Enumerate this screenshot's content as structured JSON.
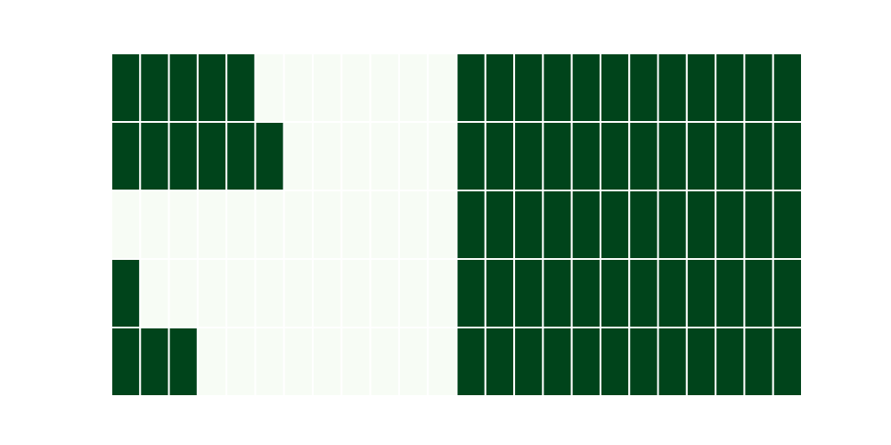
{
  "chart_data": {
    "type": "heatmap",
    "title": "",
    "xlabel": "",
    "ylabel": "",
    "n_rows": 5,
    "n_cols": 24,
    "values": [
      [
        1,
        1,
        1,
        1,
        1,
        0,
        0,
        0,
        0,
        0,
        0,
        0,
        1,
        1,
        1,
        1,
        1,
        1,
        1,
        1,
        1,
        1,
        1,
        1
      ],
      [
        1,
        1,
        1,
        1,
        1,
        1,
        0,
        0,
        0,
        0,
        0,
        0,
        1,
        1,
        1,
        1,
        1,
        1,
        1,
        1,
        1,
        1,
        1,
        1
      ],
      [
        0,
        0,
        0,
        0,
        0,
        0,
        0,
        0,
        0,
        0,
        0,
        0,
        1,
        1,
        1,
        1,
        1,
        1,
        1,
        1,
        1,
        1,
        1,
        1
      ],
      [
        1,
        0,
        0,
        0,
        0,
        0,
        0,
        0,
        0,
        0,
        0,
        0,
        1,
        1,
        1,
        1,
        1,
        1,
        1,
        1,
        1,
        1,
        1,
        1
      ],
      [
        1,
        1,
        1,
        0,
        0,
        0,
        0,
        0,
        0,
        0,
        0,
        0,
        1,
        1,
        1,
        1,
        1,
        1,
        1,
        1,
        1,
        1,
        1,
        1
      ]
    ],
    "value_range": [
      0,
      1
    ],
    "colormap": "Greens",
    "colors": {
      "low": "#f7fcf5",
      "high": "#00441b",
      "cell_border": "#ffffff"
    },
    "grid": true,
    "legend": "none"
  }
}
